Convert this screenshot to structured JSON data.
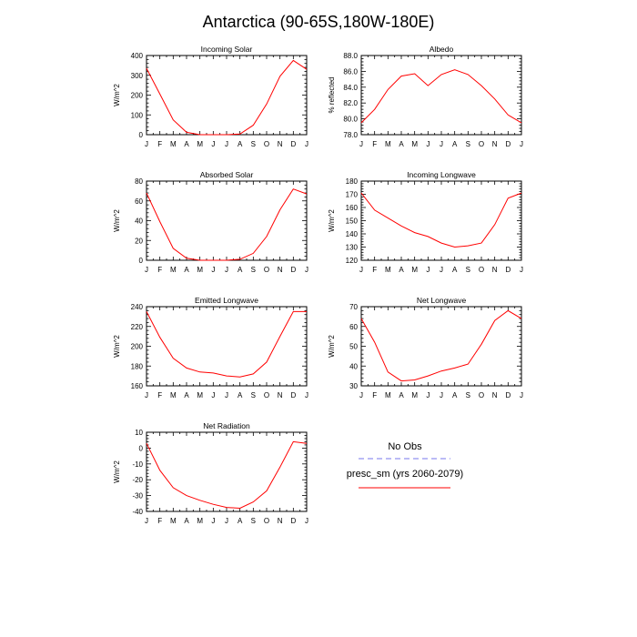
{
  "figure": {
    "title": "Antarctica (90-65S,180W-180E)"
  },
  "legend": {
    "items": [
      {
        "label": "No Obs",
        "color": "#7777ee",
        "dashed": true
      },
      {
        "label": "presc_sm (yrs 2060-2079)",
        "color": "#ff0000",
        "dashed": false
      }
    ]
  },
  "chart_data": [
    {
      "type": "line",
      "title": "Incoming Solar",
      "ylabel": "W/m^2",
      "ylim": [
        0,
        400
      ],
      "yticks": [
        "0",
        "100",
        "200",
        "300",
        "400"
      ],
      "categories": [
        "J",
        "F",
        "M",
        "A",
        "M",
        "J",
        "J",
        "A",
        "S",
        "O",
        "N",
        "D",
        "J"
      ],
      "series": [
        {
          "color": "#ff0000",
          "values": [
            335,
            205,
            75,
            12,
            0,
            0,
            0,
            3,
            48,
            155,
            295,
            375,
            330
          ]
        }
      ]
    },
    {
      "type": "line",
      "title": "Albedo",
      "ylabel": "% reflected",
      "ylim": [
        78,
        88
      ],
      "yticks": [
        "78.0",
        "80.0",
        "82.0",
        "84.0",
        "86.0",
        "88.0"
      ],
      "categories": [
        "J",
        "F",
        "M",
        "A",
        "M",
        "J",
        "J",
        "A",
        "S",
        "O",
        "N",
        "D",
        "J"
      ],
      "series": [
        {
          "color": "#ff0000",
          "values": [
            79.5,
            81.2,
            83.7,
            85.4,
            85.7,
            84.2,
            85.6,
            86.2,
            85.6,
            84.2,
            82.5,
            80.5,
            79.5
          ]
        }
      ]
    },
    {
      "type": "line",
      "title": "Absorbed Solar",
      "ylabel": "W/m^2",
      "ylim": [
        0,
        80
      ],
      "yticks": [
        "0",
        "20",
        "40",
        "60",
        "80"
      ],
      "categories": [
        "J",
        "F",
        "M",
        "A",
        "M",
        "J",
        "J",
        "A",
        "S",
        "O",
        "N",
        "D",
        "J"
      ],
      "series": [
        {
          "color": "#ff0000",
          "values": [
            68,
            39,
            12,
            2,
            0,
            0,
            0,
            1,
            7,
            24,
            51,
            72,
            67
          ]
        }
      ]
    },
    {
      "type": "line",
      "title": "Incoming Longwave",
      "ylabel": "W/m^2",
      "ylim": [
        120,
        180
      ],
      "yticks": [
        "120",
        "130",
        "140",
        "150",
        "160",
        "170",
        "180"
      ],
      "categories": [
        "J",
        "F",
        "M",
        "A",
        "M",
        "J",
        "J",
        "A",
        "S",
        "O",
        "N",
        "D",
        "J"
      ],
      "series": [
        {
          "color": "#ff0000",
          "values": [
            171,
            158,
            152,
            146,
            141,
            138,
            133,
            130,
            131,
            133,
            147,
            167,
            171
          ]
        }
      ]
    },
    {
      "type": "line",
      "title": "Emitted Longwave",
      "ylabel": "W/m^2",
      "ylim": [
        160,
        240
      ],
      "yticks": [
        "160",
        "180",
        "200",
        "220",
        "240"
      ],
      "categories": [
        "J",
        "F",
        "M",
        "A",
        "M",
        "J",
        "J",
        "A",
        "S",
        "O",
        "N",
        "D",
        "J"
      ],
      "series": [
        {
          "color": "#ff0000",
          "values": [
            235,
            209,
            188,
            178,
            174,
            173,
            170,
            169,
            172,
            184,
            210,
            235,
            235
          ]
        }
      ]
    },
    {
      "type": "line",
      "title": "Net Longwave",
      "ylabel": "W/m^2",
      "ylim": [
        30,
        70
      ],
      "yticks": [
        "30",
        "40",
        "50",
        "60",
        "70"
      ],
      "categories": [
        "J",
        "F",
        "M",
        "A",
        "M",
        "J",
        "J",
        "A",
        "S",
        "O",
        "N",
        "D",
        "J"
      ],
      "series": [
        {
          "color": "#ff0000",
          "values": [
            64,
            52,
            37,
            32.5,
            33,
            35,
            37.5,
            39,
            41,
            51,
            63,
            68,
            64
          ]
        }
      ]
    },
    {
      "type": "line",
      "title": "Net Radiation",
      "ylabel": "W/m^2",
      "ylim": [
        -40,
        10
      ],
      "yticks": [
        "-40",
        "-30",
        "-20",
        "-10",
        "0",
        "10"
      ],
      "categories": [
        "J",
        "F",
        "M",
        "A",
        "M",
        "J",
        "J",
        "A",
        "S",
        "O",
        "N",
        "D",
        "J"
      ],
      "series": [
        {
          "color": "#ff0000",
          "values": [
            3,
            -14,
            -25,
            -30,
            -33,
            -35.5,
            -37.5,
            -38,
            -34,
            -27,
            -12,
            4,
            3
          ]
        }
      ]
    }
  ]
}
